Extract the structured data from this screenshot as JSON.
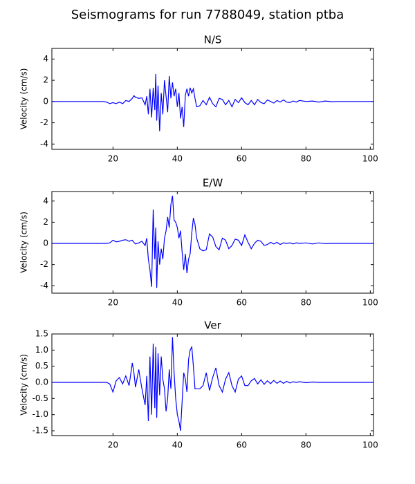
{
  "title": "Seismograms for run 7788049, station ptba",
  "chart_data": [
    {
      "type": "line",
      "title": "N/S",
      "ylabel": "Velocity (cm/s)",
      "color": "#0000ff",
      "xlim": [
        1,
        101
      ],
      "ylim": [
        -4.5,
        5
      ],
      "xticks": [
        20,
        40,
        60,
        80,
        100
      ],
      "yticks": [
        -4,
        -2,
        0,
        2,
        4
      ],
      "x": [
        1,
        17,
        18,
        19,
        20,
        21,
        22,
        23,
        24,
        25,
        26,
        26.5,
        27,
        28,
        29,
        30,
        30.5,
        31,
        31.5,
        32,
        32.5,
        33,
        33.3,
        33.6,
        34,
        34.5,
        35,
        35.5,
        36,
        36.5,
        37,
        37.5,
        38,
        38.5,
        39,
        39.5,
        40,
        40.5,
        41,
        41.5,
        42,
        42.5,
        43,
        43.5,
        44,
        44.5,
        45,
        45.5,
        46,
        47,
        48,
        49,
        50,
        51,
        52,
        53,
        54,
        55,
        56,
        57,
        58,
        59,
        60,
        61,
        62,
        63,
        64,
        65,
        66,
        67,
        68,
        69,
        70,
        71,
        72,
        73,
        74,
        75,
        76,
        77,
        78,
        80,
        82,
        84,
        86,
        88,
        90,
        95,
        101
      ],
      "values": [
        0,
        0,
        -0.05,
        -0.2,
        -0.1,
        -0.2,
        -0.05,
        -0.2,
        0.1,
        0,
        0.3,
        0.55,
        0.4,
        0.3,
        0.35,
        -0.3,
        0.5,
        -1.2,
        1.2,
        -1.5,
        1.3,
        -0.8,
        2.6,
        -1.8,
        1.5,
        -2.8,
        0.8,
        -1.2,
        2.0,
        0.5,
        -1.0,
        2.4,
        0.3,
        1.8,
        0.5,
        1.2,
        -0.5,
        0.8,
        -1.6,
        -0.5,
        -2.4,
        0.6,
        1.2,
        0.5,
        1.3,
        0.8,
        1.2,
        0.3,
        -0.5,
        -0.4,
        0.1,
        -0.3,
        0.4,
        -0.2,
        -0.5,
        0.3,
        0.2,
        -0.3,
        0.1,
        -0.5,
        0.2,
        -0.1,
        0.35,
        -0.1,
        -0.3,
        0.1,
        -0.3,
        0.2,
        -0.1,
        -0.2,
        0.15,
        0,
        -0.15,
        0.1,
        -0.05,
        0.15,
        -0.05,
        -0.1,
        0.05,
        -0.05,
        0.1,
        0,
        0.05,
        -0.05,
        0.05,
        -0.02,
        0,
        0,
        0
      ]
    },
    {
      "type": "line",
      "title": "E/W",
      "ylabel": "Velocity (cm/s)",
      "color": "#0000ff",
      "xlim": [
        1,
        101
      ],
      "ylim": [
        -4.7,
        4.9
      ],
      "xticks": [
        20,
        40,
        60,
        80,
        100
      ],
      "yticks": [
        -4,
        -2,
        0,
        2,
        4
      ],
      "x": [
        1,
        17,
        18,
        19,
        20,
        21,
        22,
        23,
        24,
        25,
        26,
        26.5,
        27,
        28,
        29,
        30,
        30.5,
        31,
        31.5,
        32,
        32.5,
        33,
        33.3,
        33.6,
        34,
        34.5,
        35,
        35.5,
        36,
        36.5,
        37,
        37.5,
        38,
        38.5,
        39,
        39.5,
        40,
        40.5,
        41,
        41.5,
        42,
        42.5,
        43,
        43.5,
        44,
        44.5,
        45,
        45.5,
        46,
        47,
        48,
        49,
        50,
        51,
        52,
        53,
        54,
        55,
        56,
        57,
        58,
        59,
        60,
        61,
        62,
        63,
        64,
        65,
        66,
        67,
        68,
        69,
        70,
        71,
        72,
        73,
        74,
        75,
        76,
        77,
        78,
        80,
        82,
        84,
        86,
        88,
        90,
        95,
        101
      ],
      "values": [
        0,
        0,
        0,
        0.05,
        0.3,
        0.15,
        0.2,
        0.3,
        0.35,
        0.2,
        0.3,
        0.1,
        -0.05,
        0.05,
        0.2,
        -0.2,
        0.5,
        -1.5,
        -2.5,
        -4.1,
        3.2,
        -1.5,
        1.5,
        -4.2,
        0.2,
        -2.0,
        -0.5,
        -1.5,
        0.5,
        1.2,
        2.5,
        1.5,
        3.7,
        4.5,
        2.2,
        2.0,
        1.5,
        0.5,
        1.2,
        -0.8,
        -2.5,
        -1.0,
        -2.8,
        -1.5,
        -1.0,
        1.0,
        2.4,
        1.8,
        0.5,
        -0.5,
        -0.7,
        -0.6,
        0.9,
        0.6,
        -0.3,
        -0.6,
        0.5,
        0.3,
        -0.5,
        -0.2,
        0.4,
        0.3,
        -0.2,
        0.8,
        0.1,
        -0.5,
        0,
        0.3,
        0.2,
        -0.2,
        -0.1,
        0.1,
        -0.05,
        0.1,
        -0.1,
        0.05,
        0,
        0.05,
        -0.05,
        0.05,
        0,
        0.05,
        -0.05,
        0.05,
        -0.02,
        0,
        0,
        0,
        0
      ]
    },
    {
      "type": "line",
      "title": "Ver",
      "ylabel": "Velocity (cm/s)",
      "color": "#0000ff",
      "xlim": [
        1,
        101
      ],
      "ylim": [
        -1.65,
        1.5
      ],
      "xticks": [
        20,
        40,
        60,
        80,
        100
      ],
      "yticks": [
        -1.5,
        {
          "value": -1,
          "label": "-1.0"
        },
        -0.5,
        {
          "value": 0,
          "label": "0.0"
        },
        0.5,
        {
          "value": 1,
          "label": "1.0"
        },
        1.5
      ],
      "x": [
        1,
        17,
        18,
        19,
        20,
        21,
        22,
        23,
        24,
        25,
        26,
        26.5,
        27,
        28,
        29,
        30,
        30.5,
        31,
        31.5,
        32,
        32.5,
        33,
        33.3,
        33.6,
        34,
        34.5,
        35,
        35.5,
        36,
        36.5,
        37,
        37.5,
        38,
        38.5,
        39,
        39.5,
        40,
        40.5,
        41,
        41.5,
        42,
        42.5,
        43,
        43.5,
        44,
        44.5,
        45,
        45.5,
        46,
        47,
        48,
        49,
        50,
        51,
        52,
        53,
        54,
        55,
        56,
        57,
        58,
        59,
        60,
        61,
        62,
        63,
        64,
        65,
        66,
        67,
        68,
        69,
        70,
        71,
        72,
        73,
        74,
        75,
        76,
        77,
        78,
        80,
        82,
        84,
        86,
        88,
        90,
        95,
        101
      ],
      "values": [
        0,
        0,
        0,
        -0.05,
        -0.3,
        0.05,
        0.15,
        -0.05,
        0.2,
        -0.1,
        0.6,
        0.3,
        -0.15,
        0.4,
        -0.2,
        -0.7,
        0.2,
        -1.2,
        0.8,
        -1.0,
        1.2,
        -0.8,
        1.1,
        -1.1,
        0.9,
        -0.4,
        0.8,
        0.1,
        -0.2,
        -0.9,
        -0.5,
        0.4,
        -0.2,
        1.4,
        0.3,
        -0.5,
        -1.0,
        -1.2,
        -1.5,
        -0.6,
        0.3,
        0.1,
        -0.3,
        0.7,
        1.0,
        1.1,
        0.5,
        -0.2,
        -0.2,
        -0.2,
        -0.1,
        0.3,
        -0.25,
        0.15,
        0.45,
        -0.1,
        -0.3,
        0.1,
        0.3,
        -0.1,
        -0.3,
        0.1,
        0.2,
        -0.1,
        -0.1,
        0.05,
        0.12,
        -0.05,
        0.08,
        -0.06,
        0.05,
        -0.04,
        0.06,
        -0.03,
        0.04,
        -0.03,
        0.03,
        -0.02,
        0.02,
        0,
        0.02,
        -0.01,
        0.01,
        0,
        0,
        0,
        0,
        0,
        0
      ]
    }
  ]
}
